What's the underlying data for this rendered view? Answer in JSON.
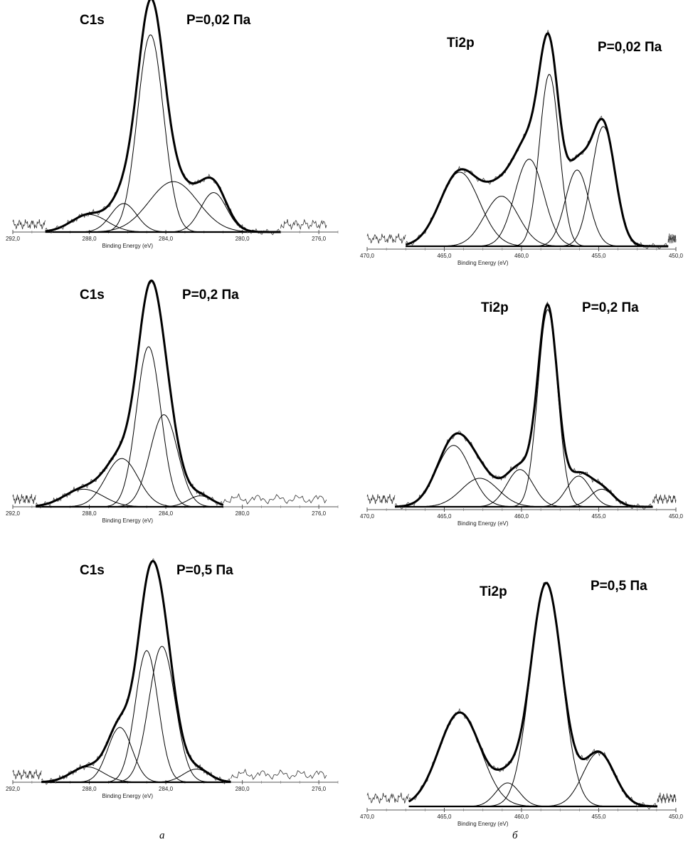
{
  "captions": {
    "left": "а",
    "right": "б"
  },
  "chart_data": [
    {
      "type": "line",
      "element": "C1s",
      "pressure": "P=0,02 Па",
      "xlabel": "Binding Energy (eV)",
      "xlim": [
        292,
        275
      ],
      "ylim": [
        0,
        100
      ],
      "grid": false,
      "x_ticks": [
        292,
        288,
        284,
        280,
        276
      ],
      "x_tick_labels": [
        "292,0",
        "288,0",
        "284,0",
        "280,0",
        "276,0"
      ],
      "fit_range": [
        290.3,
        278
      ],
      "background_range": [
        292,
        290.3,
        278,
        275.6
      ],
      "components": [
        {
          "center": 288.0,
          "amplitude": 8,
          "fwhm": 2.2
        },
        {
          "center": 286.2,
          "amplitude": 13,
          "fwhm": 1.6
        },
        {
          "center": 284.8,
          "amplitude": 90,
          "fwhm": 1.6
        },
        {
          "center": 283.6,
          "amplitude": 23,
          "fwhm": 3.0
        },
        {
          "center": 281.5,
          "amplitude": 18,
          "fwhm": 1.6
        }
      ]
    },
    {
      "type": "line",
      "element": "C1s",
      "pressure": "P=0,2 Па",
      "xlabel": "Binding Energy (eV)",
      "xlim": [
        292,
        275
      ],
      "ylim": [
        0,
        100
      ],
      "grid": false,
      "x_ticks": [
        292,
        288,
        284,
        280,
        276
      ],
      "x_tick_labels": [
        "292,0",
        "288,0",
        "284,0",
        "280,0",
        "276,0"
      ],
      "fit_range": [
        290.8,
        281
      ],
      "background_range": [
        292,
        290.8,
        281,
        275.6
      ],
      "components": [
        {
          "center": 288.3,
          "amplitude": 8,
          "fwhm": 2.4
        },
        {
          "center": 286.3,
          "amplitude": 22,
          "fwhm": 2.0
        },
        {
          "center": 284.9,
          "amplitude": 73,
          "fwhm": 1.5
        },
        {
          "center": 284.1,
          "amplitude": 42,
          "fwhm": 1.7
        },
        {
          "center": 282.2,
          "amplitude": 5,
          "fwhm": 1.5
        }
      ]
    },
    {
      "type": "line",
      "element": "C1s",
      "pressure": "P=0,5 Па",
      "xlabel": "Binding Energy (eV)",
      "xlim": [
        292,
        275
      ],
      "ylim": [
        0,
        100
      ],
      "grid": false,
      "x_ticks": [
        292,
        288,
        284,
        280,
        276
      ],
      "x_tick_labels": [
        "292,0",
        "288,0",
        "284,0",
        "280,0",
        "276,0"
      ],
      "fit_range": [
        290.5,
        280.6
      ],
      "background_range": [
        292,
        290.5,
        280.6,
        275.6
      ],
      "components": [
        {
          "center": 288.1,
          "amplitude": 7,
          "fwhm": 2.0
        },
        {
          "center": 286.4,
          "amplitude": 25,
          "fwhm": 1.5
        },
        {
          "center": 285.0,
          "amplitude": 60,
          "fwhm": 1.4
        },
        {
          "center": 284.2,
          "amplitude": 62,
          "fwhm": 1.6
        },
        {
          "center": 282.4,
          "amplitude": 6,
          "fwhm": 1.6
        }
      ]
    },
    {
      "type": "line",
      "element": "Ti2p",
      "pressure": "P=0,02 Па",
      "xlabel": "Binding Energy (eV)",
      "xlim": [
        470,
        450
      ],
      "ylim": [
        0,
        100
      ],
      "grid": false,
      "x_ticks": [
        470,
        465,
        460,
        455,
        450
      ],
      "x_tick_labels": [
        "470,0",
        "465,0",
        "460,0",
        "455,0",
        "450,0"
      ],
      "fit_range": [
        467.5,
        450.5
      ],
      "background_range": [
        470,
        467.5,
        450.5,
        450
      ],
      "components": [
        {
          "center": 464.0,
          "amplitude": 34,
          "fwhm": 3.0
        },
        {
          "center": 461.3,
          "amplitude": 23,
          "fwhm": 2.6
        },
        {
          "center": 459.5,
          "amplitude": 40,
          "fwhm": 2.2
        },
        {
          "center": 458.2,
          "amplitude": 79,
          "fwhm": 1.5
        },
        {
          "center": 456.4,
          "amplitude": 35,
          "fwhm": 1.8
        },
        {
          "center": 454.7,
          "amplitude": 55,
          "fwhm": 1.8
        }
      ]
    },
    {
      "type": "line",
      "element": "Ti2p",
      "pressure": "P=0,2 Па",
      "xlabel": "Binding Energy (eV)",
      "xlim": [
        470,
        450
      ],
      "ylim": [
        0,
        100
      ],
      "grid": false,
      "x_ticks": [
        470,
        465,
        460,
        455,
        450
      ],
      "x_tick_labels": [
        "470,0",
        "465,0",
        "460,0",
        "455,0",
        "450,0"
      ],
      "fit_range": [
        468.2,
        451.5
      ],
      "background_range": [
        470,
        468.2,
        451.5,
        450
      ],
      "components": [
        {
          "center": 464.4,
          "amplitude": 28,
          "fwhm": 2.6
        },
        {
          "center": 462.7,
          "amplitude": 13,
          "fwhm": 2.8
        },
        {
          "center": 460.1,
          "amplitude": 17,
          "fwhm": 2.0
        },
        {
          "center": 458.3,
          "amplitude": 90,
          "fwhm": 1.5
        },
        {
          "center": 456.3,
          "amplitude": 14,
          "fwhm": 1.8
        },
        {
          "center": 454.8,
          "amplitude": 8,
          "fwhm": 1.8
        }
      ]
    },
    {
      "type": "line",
      "element": "Ti2p",
      "pressure": "P=0,5 Па",
      "xlabel": "Binding Energy (eV)",
      "xlim": [
        470,
        450
      ],
      "ylim": [
        0,
        100
      ],
      "grid": false,
      "x_ticks": [
        470,
        465,
        460,
        455,
        450
      ],
      "x_tick_labels": [
        "470,0",
        "465,0",
        "460,0",
        "455,0",
        "450,0"
      ],
      "fit_range": [
        467.3,
        451.2
      ],
      "background_range": [
        470,
        467.3,
        451.2,
        450
      ],
      "components": [
        {
          "center": 464.0,
          "amplitude": 40,
          "fwhm": 3.2
        },
        {
          "center": 460.9,
          "amplitude": 10,
          "fwhm": 1.8
        },
        {
          "center": 458.4,
          "amplitude": 95,
          "fwhm": 2.4
        },
        {
          "center": 455.0,
          "amplitude": 23,
          "fwhm": 2.4
        }
      ]
    }
  ]
}
